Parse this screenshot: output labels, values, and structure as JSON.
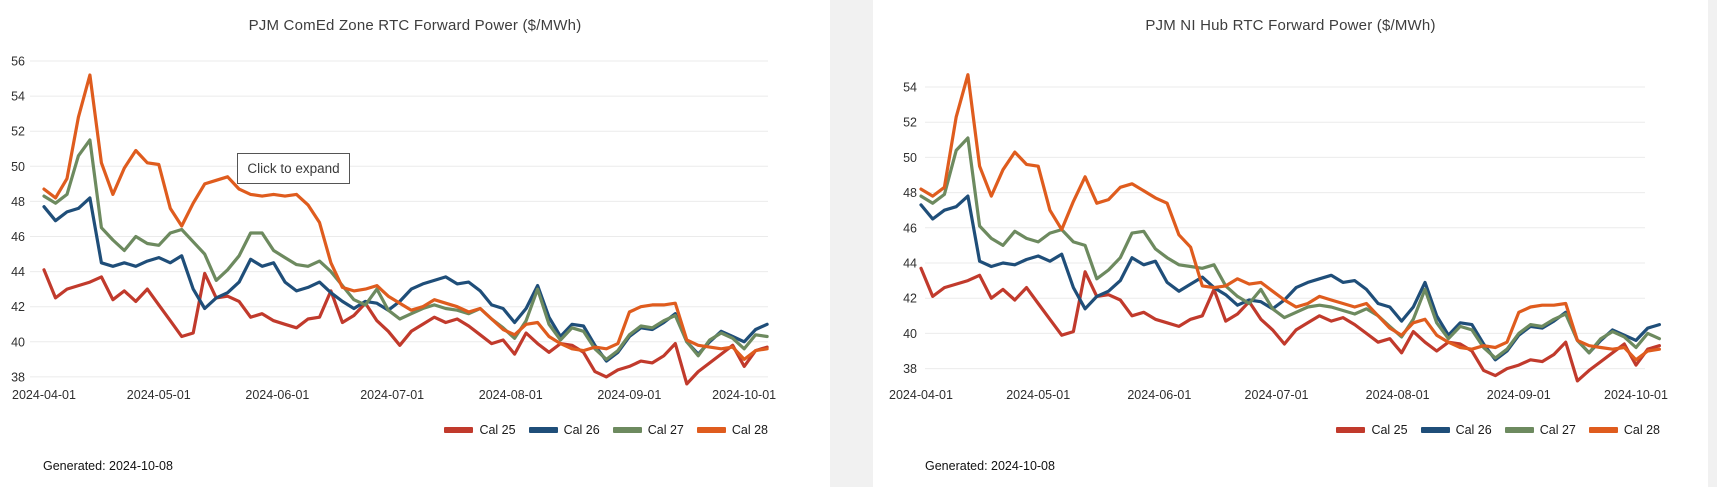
{
  "page": {
    "background": "#f1f1f1",
    "card_background": "#ffffff"
  },
  "ui": {
    "click_to_expand": "Click to expand"
  },
  "palette": {
    "cal25": "#c13a2c",
    "cal26": "#1f4e79",
    "cal27": "#6d8a5f",
    "cal28": "#df5c1e",
    "gridline": "#ebebeb",
    "tick_text": "#2f2f2f"
  },
  "chart_data": [
    {
      "type": "line",
      "title": "PJM ComEd Zone RTC Forward Power ($/MWh)",
      "footer": "Generated: 2024-10-08",
      "x_start": "2024-04-01",
      "x_end": "2024-10-07",
      "sample_interval_days": 3,
      "ylim": [
        38,
        56
      ],
      "yticks": [
        56,
        54,
        52,
        50,
        48,
        46,
        44,
        42,
        40,
        38
      ],
      "xticks": [
        {
          "label": "2024-04-01",
          "day": 0
        },
        {
          "label": "2024-05-01",
          "day": 30
        },
        {
          "label": "2024-06-01",
          "day": 61
        },
        {
          "label": "2024-07-01",
          "day": 91
        },
        {
          "label": "2024-08-01",
          "day": 122
        },
        {
          "label": "2024-09-01",
          "day": 153
        },
        {
          "label": "2024-10-01",
          "day": 183
        }
      ],
      "legend_position": "bottom-right",
      "grid": "horizontal",
      "series": [
        {
          "name": "Cal 25",
          "color": "#c13a2c",
          "values": [
            44.1,
            42.5,
            43.0,
            43.2,
            43.4,
            43.7,
            42.4,
            42.9,
            42.3,
            43.0,
            42.1,
            41.2,
            40.3,
            40.5,
            43.9,
            42.5,
            42.6,
            42.3,
            41.4,
            41.6,
            41.2,
            41.0,
            40.8,
            41.3,
            41.4,
            42.9,
            41.1,
            41.5,
            42.2,
            41.2,
            40.6,
            39.8,
            40.6,
            41.0,
            41.4,
            41.1,
            41.3,
            40.9,
            40.4,
            39.9,
            40.1,
            39.3,
            40.5,
            39.9,
            39.4,
            39.9,
            39.8,
            39.4,
            38.3,
            38.0,
            38.4,
            38.6,
            38.9,
            38.8,
            39.2,
            39.9,
            37.6,
            38.3,
            38.8,
            39.3,
            39.8,
            38.6,
            39.5,
            39.7
          ]
        },
        {
          "name": "Cal 26",
          "color": "#1f4e79",
          "values": [
            47.7,
            46.9,
            47.4,
            47.6,
            48.2,
            44.5,
            44.3,
            44.5,
            44.3,
            44.6,
            44.8,
            44.5,
            44.9,
            43.0,
            41.9,
            42.5,
            42.8,
            43.4,
            44.7,
            44.3,
            44.5,
            43.4,
            42.9,
            43.1,
            43.4,
            42.8,
            42.3,
            41.9,
            42.3,
            42.2,
            41.8,
            42.3,
            43.0,
            43.3,
            43.5,
            43.7,
            43.3,
            43.4,
            42.9,
            42.1,
            41.9,
            41.1,
            41.9,
            43.2,
            41.4,
            40.3,
            41.0,
            40.9,
            39.8,
            38.9,
            39.4,
            40.3,
            40.8,
            40.7,
            41.1,
            41.6,
            40.0,
            39.3,
            40.0,
            40.6,
            40.3,
            40.0,
            40.7,
            41.0
          ]
        },
        {
          "name": "Cal 27",
          "color": "#6d8a5f",
          "values": [
            48.3,
            47.9,
            48.4,
            50.6,
            51.5,
            46.5,
            45.8,
            45.2,
            46.0,
            45.6,
            45.5,
            46.2,
            46.4,
            45.7,
            45.0,
            43.5,
            44.1,
            44.9,
            46.2,
            46.2,
            45.2,
            44.8,
            44.4,
            44.3,
            44.6,
            44.0,
            43.2,
            42.4,
            42.1,
            43.0,
            41.8,
            41.3,
            41.6,
            41.9,
            42.1,
            41.9,
            41.8,
            41.6,
            41.9,
            41.3,
            40.8,
            40.2,
            41.2,
            43.0,
            41.0,
            40.1,
            40.8,
            40.6,
            39.6,
            39.0,
            39.5,
            40.4,
            40.9,
            40.8,
            41.2,
            41.5,
            40.0,
            39.2,
            40.1,
            40.5,
            40.2,
            39.6,
            40.4,
            40.3
          ]
        },
        {
          "name": "Cal 28",
          "color": "#df5c1e",
          "values": [
            48.7,
            48.2,
            49.3,
            52.8,
            55.2,
            50.2,
            48.4,
            49.9,
            50.9,
            50.2,
            50.1,
            47.6,
            46.6,
            47.9,
            49.0,
            49.2,
            49.4,
            48.7,
            48.4,
            48.3,
            48.4,
            48.3,
            48.4,
            47.8,
            46.8,
            44.5,
            43.1,
            42.9,
            43.0,
            43.2,
            42.6,
            42.2,
            41.8,
            42.0,
            42.4,
            42.2,
            42.0,
            41.7,
            41.9,
            41.3,
            40.7,
            40.4,
            41.0,
            41.1,
            40.3,
            39.9,
            39.6,
            39.5,
            39.7,
            39.6,
            39.9,
            41.7,
            42.0,
            42.1,
            42.1,
            42.2,
            40.1,
            39.8,
            39.7,
            39.6,
            39.7,
            39.0,
            39.5,
            39.6
          ]
        }
      ]
    },
    {
      "type": "line",
      "title": "PJM NI Hub RTC Forward Power ($/MWh)",
      "footer": "Generated: 2024-10-08",
      "x_start": "2024-04-01",
      "x_end": "2024-10-07",
      "sample_interval_days": 3,
      "ylim": [
        37.5,
        55
      ],
      "yticks": [
        54,
        52,
        50,
        48,
        46,
        44,
        42,
        40,
        38
      ],
      "xticks": [
        {
          "label": "2024-04-01",
          "day": 0
        },
        {
          "label": "2024-05-01",
          "day": 30
        },
        {
          "label": "2024-06-01",
          "day": 61
        },
        {
          "label": "2024-07-01",
          "day": 91
        },
        {
          "label": "2024-08-01",
          "day": 122
        },
        {
          "label": "2024-09-01",
          "day": 153
        },
        {
          "label": "2024-10-01",
          "day": 183
        }
      ],
      "legend_position": "bottom-right",
      "grid": "horizontal",
      "series": [
        {
          "name": "Cal 25",
          "color": "#c13a2c",
          "values": [
            43.7,
            42.1,
            42.6,
            42.8,
            43.0,
            43.3,
            42.0,
            42.5,
            41.9,
            42.6,
            41.7,
            40.8,
            39.9,
            40.1,
            43.5,
            42.1,
            42.2,
            41.9,
            41.0,
            41.2,
            40.8,
            40.6,
            40.4,
            40.8,
            41.0,
            42.5,
            40.7,
            41.1,
            41.8,
            40.8,
            40.2,
            39.4,
            40.2,
            40.6,
            41.0,
            40.7,
            40.9,
            40.5,
            40.0,
            39.5,
            39.7,
            38.9,
            40.1,
            39.5,
            39.0,
            39.5,
            39.4,
            39.0,
            37.9,
            37.6,
            38.0,
            38.2,
            38.5,
            38.4,
            38.8,
            39.5,
            37.3,
            37.9,
            38.4,
            38.9,
            39.4,
            38.2,
            39.1,
            39.3
          ]
        },
        {
          "name": "Cal 26",
          "color": "#1f4e79",
          "values": [
            47.3,
            46.5,
            47.0,
            47.2,
            47.8,
            44.1,
            43.8,
            44.0,
            43.9,
            44.2,
            44.4,
            44.1,
            44.5,
            42.6,
            41.4,
            42.1,
            42.4,
            43.0,
            44.3,
            43.9,
            44.1,
            42.9,
            42.4,
            42.8,
            43.2,
            42.6,
            42.2,
            41.6,
            41.9,
            41.8,
            41.4,
            41.9,
            42.6,
            42.9,
            43.1,
            43.3,
            42.9,
            43.0,
            42.5,
            41.7,
            41.5,
            40.7,
            41.5,
            42.9,
            41.0,
            39.9,
            40.6,
            40.5,
            39.4,
            38.5,
            39.0,
            39.9,
            40.4,
            40.3,
            40.7,
            41.2,
            39.6,
            38.9,
            39.6,
            40.2,
            39.9,
            39.6,
            40.3,
            40.5
          ]
        },
        {
          "name": "Cal 27",
          "color": "#6d8a5f",
          "values": [
            47.8,
            47.4,
            47.9,
            50.4,
            51.1,
            46.1,
            45.4,
            45.0,
            45.8,
            45.4,
            45.2,
            45.7,
            45.9,
            45.2,
            45.0,
            43.1,
            43.6,
            44.3,
            45.7,
            45.8,
            44.8,
            44.3,
            43.9,
            43.8,
            43.7,
            43.9,
            42.7,
            42.1,
            41.7,
            42.5,
            41.4,
            40.9,
            41.2,
            41.5,
            41.6,
            41.5,
            41.3,
            41.1,
            41.4,
            41.0,
            40.4,
            39.8,
            40.8,
            42.5,
            40.6,
            39.7,
            40.4,
            40.2,
            39.2,
            38.6,
            39.1,
            40.0,
            40.5,
            40.4,
            40.8,
            41.1,
            39.6,
            38.9,
            39.7,
            40.1,
            39.8,
            39.2,
            40.0,
            39.7
          ]
        },
        {
          "name": "Cal 28",
          "color": "#df5c1e",
          "values": [
            48.2,
            47.8,
            48.3,
            52.3,
            54.7,
            49.5,
            47.8,
            49.3,
            50.3,
            49.6,
            49.5,
            47.0,
            45.9,
            47.5,
            48.9,
            47.4,
            47.6,
            48.3,
            48.5,
            48.1,
            47.7,
            47.4,
            45.6,
            44.9,
            42.7,
            42.6,
            42.7,
            43.1,
            42.8,
            42.9,
            42.4,
            41.9,
            41.5,
            41.7,
            42.1,
            41.9,
            41.7,
            41.5,
            41.7,
            41.0,
            40.3,
            39.9,
            40.6,
            40.8,
            39.9,
            39.5,
            39.2,
            39.1,
            39.3,
            39.2,
            39.5,
            41.2,
            41.5,
            41.6,
            41.6,
            41.7,
            39.6,
            39.3,
            39.2,
            39.1,
            39.2,
            38.5,
            39.0,
            39.1
          ]
        }
      ]
    }
  ]
}
